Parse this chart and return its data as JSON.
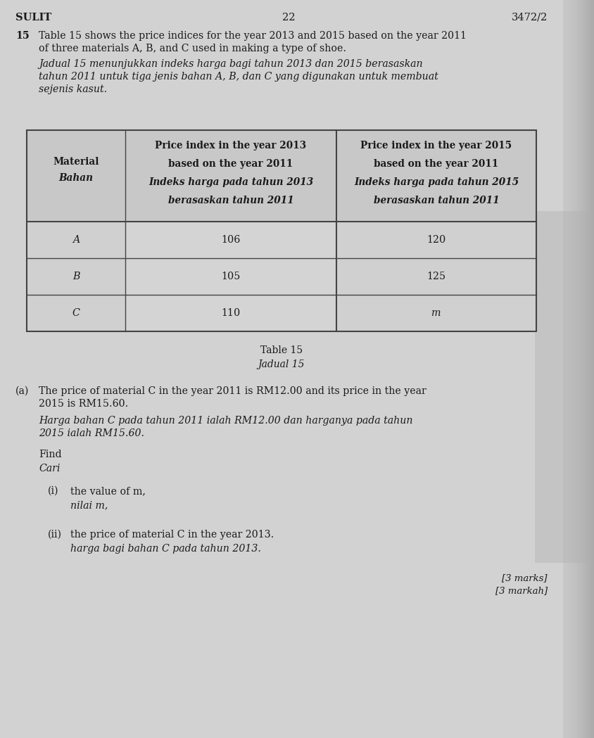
{
  "bg_color": "#c8c8c8",
  "page_color": "#d4d4d4",
  "header_left": "SULIT",
  "header_center": "22",
  "header_right": "3472/2",
  "question_number": "15",
  "q_text_en_line1": "Table 15 shows the price indices for the year 2013 and 2015 based on the year 2011",
  "q_text_en_line2": "of three materials A, B, and C used in making a type of shoe.",
  "q_text_ms_line1": "Jadual 15 menunjukkan indeks harga bagi tahun 2013 dan 2015 berasaskan",
  "q_text_ms_line2": "tahun 2011 untuk tiga jenis bahan A, B, dan C yang digunakan untuk membuat",
  "q_text_ms_line3": "sejenis kasut.",
  "col1_header_en": "Material",
  "col1_header_ms": "Bahan",
  "col2_hdr1": "Price index in the year 2013",
  "col2_hdr2": "based on the year 2011",
  "col2_hdr3": "Indeks harga pada tahun 2013",
  "col2_hdr4": "berasaskan tahun 2011",
  "col3_hdr1": "Price index in the year 2015",
  "col3_hdr2": "based on the year 2011",
  "col3_hdr3": "Indeks harga pada tahun 2015",
  "col3_hdr4": "berasaskan tahun 2011",
  "materials": [
    "A",
    "B",
    "C"
  ],
  "col2_values": [
    "106",
    "105",
    "110"
  ],
  "col3_values": [
    "120",
    "125",
    "m"
  ],
  "caption_en": "Table 15",
  "caption_ms": "Jadual 15",
  "part_a_label": "(a)",
  "part_a_en1": "The price of material C in the year 2011 is RM12.00 and its price in the year",
  "part_a_en2": "2015 is RM15.60.",
  "part_a_ms1": "Harga bahan C pada tahun 2011 ialah RM12.00 dan harganya pada tahun",
  "part_a_ms2": "2015 ialah RM15.60.",
  "find_en": "Find",
  "find_ms": "Cari",
  "sub_i_label": "(i)",
  "sub_i_en": "the value of m,",
  "sub_i_ms": "nilai m,",
  "sub_ii_label": "(ii)",
  "sub_ii_en": "the price of material C in the year 2013.",
  "sub_ii_ms": "harga bagi bahan C pada tahun 2013.",
  "marks_en": "[3 marks]",
  "marks_ms": "[3 markah]",
  "text_color": "#1a1a1a",
  "table_border_color": "#444444",
  "table_header_bg": "#c8c8c8",
  "table_cell_bg": "#d2d2d2",
  "table_white_bg": "#e8e8e8"
}
